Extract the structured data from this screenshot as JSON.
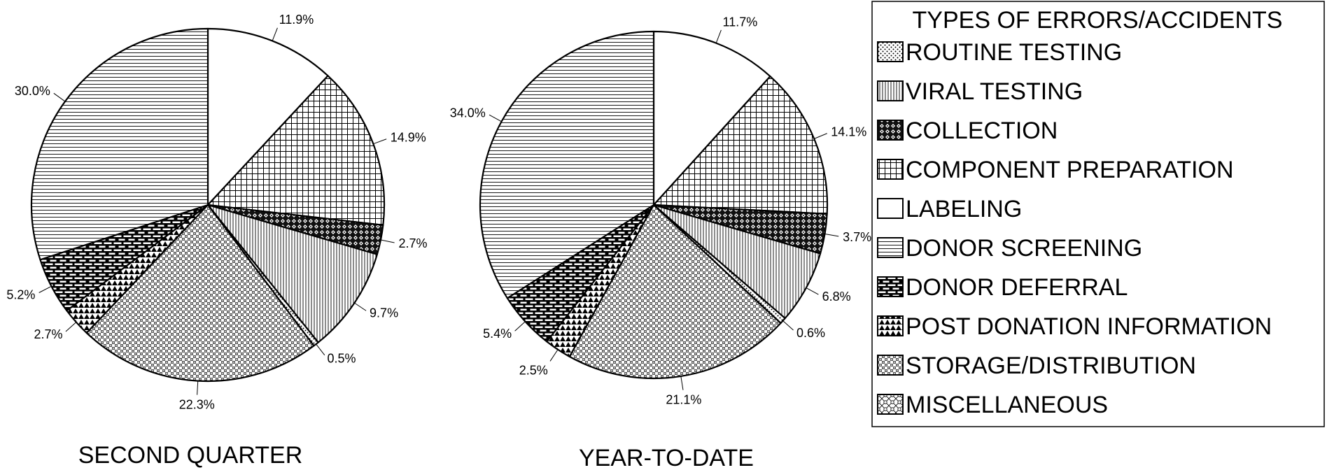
{
  "chart_data": [
    {
      "type": "pie",
      "title": "SECOND QUARTER",
      "slices": [
        {
          "label": "LABELING",
          "value": 11.9,
          "display": "11.9%",
          "pattern": "LABELING"
        },
        {
          "label": "COMPONENT PREPARATION",
          "value": 14.9,
          "display": "14.9%",
          "pattern": "COMPONENT PREPARATION"
        },
        {
          "label": "COLLECTION",
          "value": 2.7,
          "display": "2.7%",
          "pattern": "COLLECTION"
        },
        {
          "label": "VIRAL TESTING",
          "value": 9.7,
          "display": "9.7%",
          "pattern": "VIRAL TESTING"
        },
        {
          "label": "ROUTINE TESTING",
          "value": 0.5,
          "display": "0.5%",
          "pattern": "ROUTINE TESTING"
        },
        {
          "label": "STORAGE/DISTRIBUTION",
          "value": 22.3,
          "display": "22.3%",
          "pattern": "STORAGE/DISTRIBUTION"
        },
        {
          "label": "POST DONATION INFORMATION",
          "value": 2.7,
          "display": "2.7%",
          "pattern": "POST DONATION INFORMATION"
        },
        {
          "label": "DONOR DEFERRAL",
          "value": 5.2,
          "display": "5.2%",
          "pattern": "DONOR DEFERRAL"
        },
        {
          "label": "DONOR SCREENING",
          "value": 30.0,
          "display": "30.0%",
          "pattern": "DONOR SCREENING"
        }
      ]
    },
    {
      "type": "pie",
      "title": "YEAR-TO-DATE",
      "slices": [
        {
          "label": "LABELING",
          "value": 11.7,
          "display": "11.7%",
          "pattern": "LABELING"
        },
        {
          "label": "COMPONENT PREPARATION",
          "value": 14.1,
          "display": "14.1%",
          "pattern": "COMPONENT PREPARATION"
        },
        {
          "label": "COLLECTION",
          "value": 3.7,
          "display": "3.7%",
          "pattern": "COLLECTION"
        },
        {
          "label": "VIRAL TESTING",
          "value": 6.8,
          "display": "6.8%",
          "pattern": "VIRAL TESTING"
        },
        {
          "label": "ROUTINE TESTING",
          "value": 0.6,
          "display": "0.6%",
          "pattern": "ROUTINE TESTING"
        },
        {
          "label": "STORAGE/DISTRIBUTION",
          "value": 21.1,
          "display": "21.1%",
          "pattern": "STORAGE/DISTRIBUTION"
        },
        {
          "label": "POST DONATION INFORMATION",
          "value": 2.5,
          "display": "2.5%",
          "pattern": "POST DONATION INFORMATION"
        },
        {
          "label": "DONOR DEFERRAL",
          "value": 5.4,
          "display": "5.4%",
          "pattern": "DONOR DEFERRAL"
        },
        {
          "label": "DONOR SCREENING",
          "value": 34.0,
          "display": "34.0%",
          "pattern": "DONOR SCREENING"
        }
      ]
    }
  ],
  "legend": {
    "title": "TYPES OF ERRORS/ACCIDENTS",
    "items": [
      "ROUTINE TESTING",
      "VIRAL TESTING",
      "COLLECTION",
      "COMPONENT PREPARATION",
      "LABELING",
      "DONOR SCREENING",
      "DONOR DEFERRAL",
      "POST DONATION INFORMATION",
      "STORAGE/DISTRIBUTION",
      "MISCELLANEOUS"
    ]
  },
  "colors": {
    "ink": "#000000",
    "background": "#ffffff"
  }
}
